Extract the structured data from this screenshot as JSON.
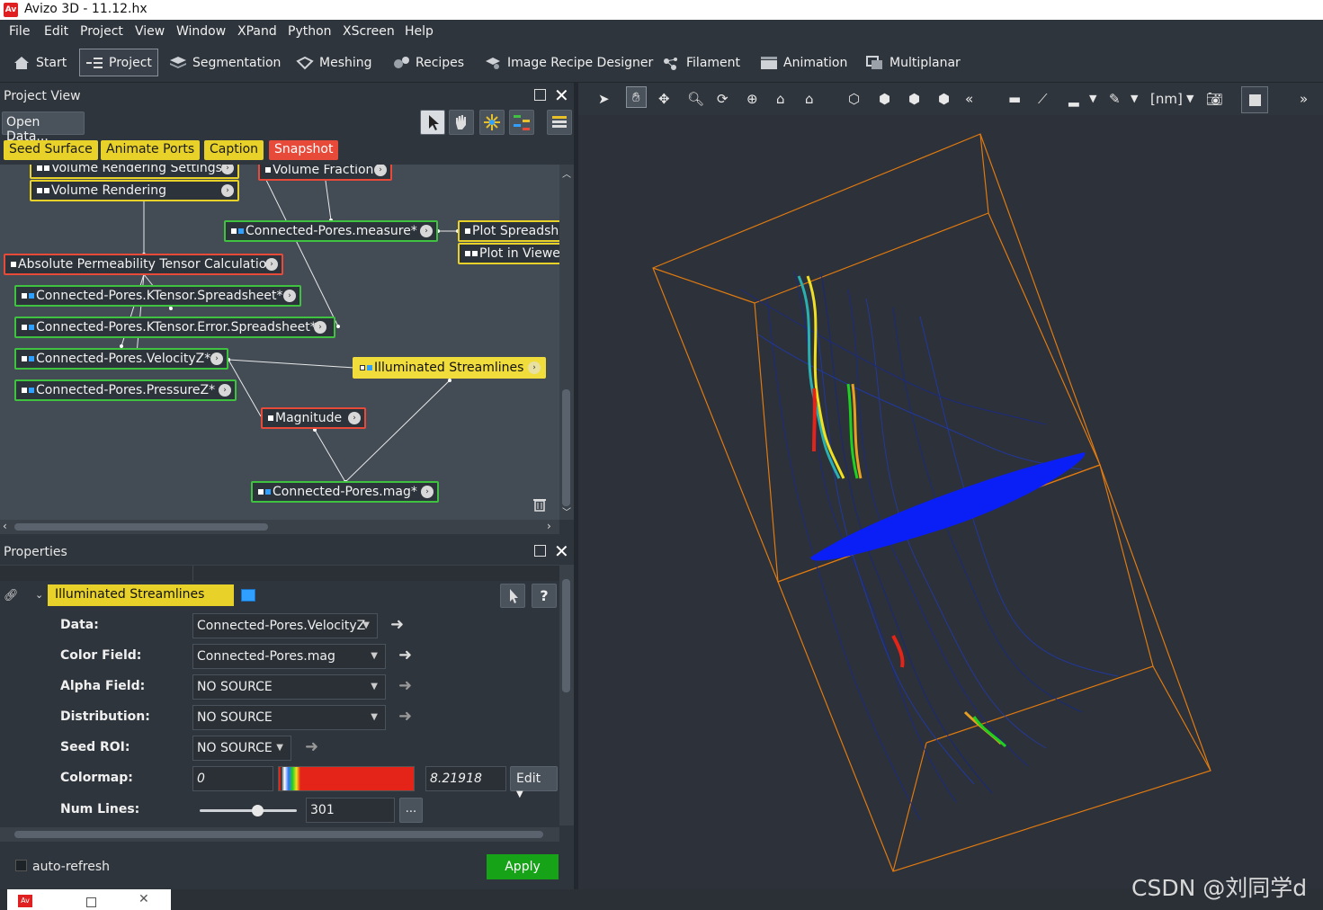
{
  "window": {
    "title": "Avizo 3D - 11.12.hx",
    "app_icon": "Av"
  },
  "menu": [
    "File",
    "Edit",
    "Project",
    "View",
    "Window",
    "XPand",
    "Python",
    "XScreen",
    "Help"
  ],
  "workspaces": [
    {
      "label": "Start",
      "icon": "home-icon"
    },
    {
      "label": "Project",
      "icon": "project-icon",
      "selected": true
    },
    {
      "label": "Segmentation",
      "icon": "layers-icon"
    },
    {
      "label": "Meshing",
      "icon": "mesh-icon"
    },
    {
      "label": "Recipes",
      "icon": "gears-icon"
    },
    {
      "label": "Image Recipe Designer",
      "icon": "recipe-designer-icon"
    },
    {
      "label": "Filament",
      "icon": "filament-icon"
    },
    {
      "label": "Animation",
      "icon": "clapper-icon"
    },
    {
      "label": "Multiplanar",
      "icon": "multiplanar-icon"
    }
  ],
  "project_view": {
    "title": "Project View",
    "open_data": "Open Data...",
    "quick_buttons": [
      "Seed Surface",
      "Animate Ports",
      "Caption",
      "Snapshot"
    ],
    "nodes": {
      "vol_render_settings": "Volume Rendering Settings",
      "vol_render": "Volume Rendering",
      "vol_fraction": "Volume Fraction",
      "measure": "Connected-Pores.measure*",
      "plot_spreadsheet": "Plot Spreadshe",
      "plot_viewer": "Plot in Viewe",
      "abs_perm": "Absolute Permeability Tensor Calculation",
      "ktensor": "Connected-Pores.KTensor.Spreadsheet*",
      "ktensor_err": "Connected-Pores.KTensor.Error.Spreadsheet*",
      "velocity": "Connected-Pores.VelocityZ*",
      "illum": "Illuminated Streamlines",
      "pressure": "Connected-Pores.PressureZ*",
      "magnitude": "Magnitude",
      "mag": "Connected-Pores.mag*"
    }
  },
  "properties": {
    "title": "Properties",
    "module": "Illuminated Streamlines",
    "fields": {
      "data_label": "Data:",
      "data_value": "Connected-Pores.VelocityZ",
      "color_label": "Color Field:",
      "color_value": "Connected-Pores.mag",
      "alpha_label": "Alpha Field:",
      "alpha_value": "NO SOURCE",
      "dist_label": "Distribution:",
      "dist_value": "NO SOURCE",
      "seed_label": "Seed ROI:",
      "seed_value": "NO SOURCE",
      "cmap_label": "Colormap:",
      "cmap_min": "0",
      "cmap_max": "8.21918",
      "cmap_edit": "Edit",
      "lines_label": "Num Lines:",
      "lines_value": "301",
      "lines_more": "..."
    },
    "auto_refresh": "auto-refresh",
    "apply": "Apply"
  },
  "viewer": {
    "units": "[nm]",
    "more": "»"
  },
  "watermark": "CSDN @刘同学d",
  "colors": {
    "accent_yellow": "#e8d22a",
    "accent_red": "#e84a3a",
    "accent_green": "#3fc23f",
    "apply": "#17a317"
  }
}
